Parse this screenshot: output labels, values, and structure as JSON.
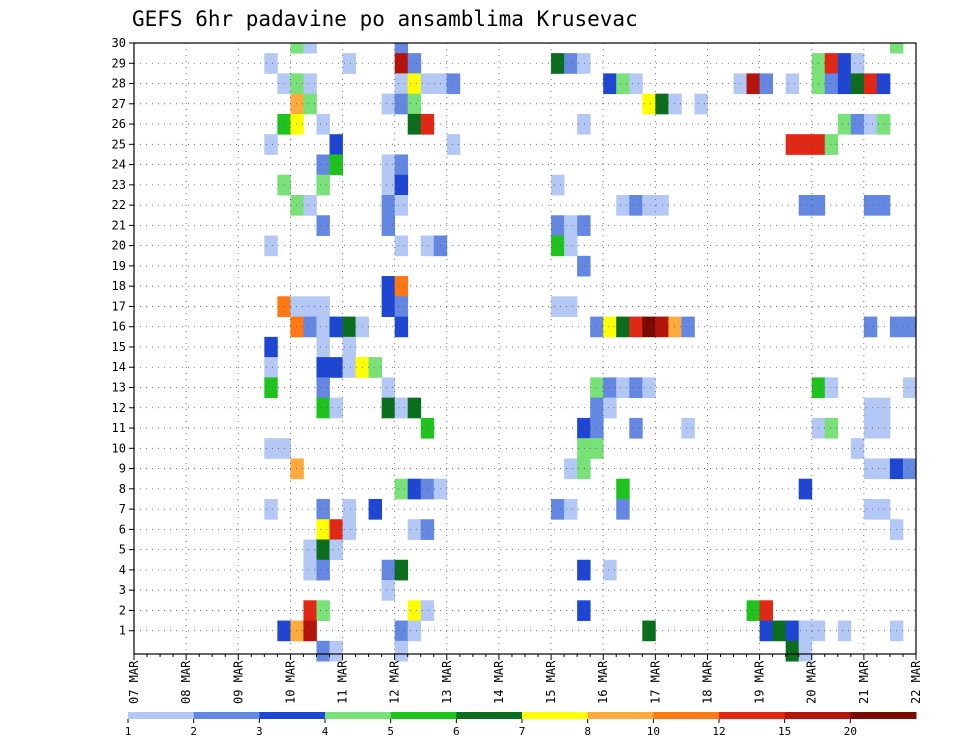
{
  "chart_data": {
    "type": "heatmap",
    "title": "GEFS 6hr padavine po ansamblima Krusevac",
    "xlabel": "",
    "ylabel": "",
    "y_ticks": [
      1,
      2,
      3,
      4,
      5,
      6,
      7,
      8,
      9,
      10,
      11,
      12,
      13,
      14,
      15,
      16,
      17,
      18,
      19,
      20,
      21,
      22,
      23,
      24,
      25,
      26,
      27,
      28,
      29,
      30
    ],
    "x_tick_labels": [
      "07 MAR",
      "08 MAR",
      "09 MAR",
      "10 MAR",
      "11 MAR",
      "12 MAR",
      "13 MAR",
      "14 MAR",
      "15 MAR",
      "16 MAR",
      "17 MAR",
      "18 MAR",
      "19 MAR",
      "20 MAR",
      "21 MAR",
      "22 MAR"
    ],
    "x_range_days": [
      0,
      15
    ],
    "y_range": [
      0,
      30
    ],
    "grid": true,
    "legend_position": "bottom",
    "legend_thresholds": [
      "1",
      "2",
      "3",
      "4",
      "5",
      "6",
      "7",
      "8",
      "10",
      "12",
      "15",
      "20"
    ],
    "legend_colors": [
      "#b4c8f5",
      "#6487e1",
      "#1e46d2",
      "#78e178",
      "#1ec31e",
      "#0a6e1e",
      "#ffff00",
      "#ffaa3c",
      "#ff7814",
      "#e12814",
      "#b4140a",
      "#780a00"
    ],
    "value_level_meaning": "level index 0-11 maps to legend color band (mm per 6h)",
    "cells": [
      [
        30,
        3.0,
        3
      ],
      [
        30,
        3.25,
        0
      ],
      [
        30,
        5.0,
        1
      ],
      [
        30,
        14.5,
        3
      ],
      [
        29,
        2.5,
        0
      ],
      [
        29,
        4.0,
        0
      ],
      [
        29,
        5.0,
        10
      ],
      [
        29,
        5.25,
        1
      ],
      [
        29,
        8.0,
        5
      ],
      [
        29,
        8.25,
        1
      ],
      [
        29,
        8.5,
        0
      ],
      [
        29,
        13.0,
        3
      ],
      [
        29,
        13.25,
        9
      ],
      [
        29,
        13.5,
        2
      ],
      [
        29,
        13.75,
        0
      ],
      [
        28,
        2.75,
        0
      ],
      [
        28,
        3.0,
        3
      ],
      [
        28,
        3.25,
        0
      ],
      [
        28,
        5.0,
        0
      ],
      [
        28,
        5.25,
        6
      ],
      [
        28,
        5.5,
        0
      ],
      [
        28,
        5.75,
        0
      ],
      [
        28,
        6.0,
        1
      ],
      [
        28,
        9.0,
        2
      ],
      [
        28,
        9.25,
        3
      ],
      [
        28,
        9.5,
        0
      ],
      [
        28,
        11.5,
        0
      ],
      [
        28,
        11.75,
        10
      ],
      [
        28,
        12.0,
        1
      ],
      [
        28,
        12.5,
        0
      ],
      [
        28,
        13.0,
        3
      ],
      [
        28,
        13.25,
        1
      ],
      [
        28,
        13.5,
        2
      ],
      [
        28,
        13.75,
        5
      ],
      [
        28,
        14.0,
        9
      ],
      [
        28,
        14.25,
        2
      ],
      [
        27,
        3.0,
        7
      ],
      [
        27,
        3.25,
        3
      ],
      [
        27,
        4.75,
        0
      ],
      [
        27,
        5.0,
        1
      ],
      [
        27,
        5.25,
        3
      ],
      [
        27,
        9.75,
        6
      ],
      [
        27,
        10.0,
        5
      ],
      [
        27,
        10.25,
        0
      ],
      [
        27,
        10.75,
        0
      ],
      [
        26,
        2.75,
        4
      ],
      [
        26,
        3.0,
        6
      ],
      [
        26,
        3.5,
        0
      ],
      [
        26,
        5.25,
        5
      ],
      [
        26,
        5.5,
        9
      ],
      [
        26,
        8.5,
        0
      ],
      [
        26,
        13.5,
        3
      ],
      [
        26,
        13.75,
        1
      ],
      [
        26,
        14.0,
        0
      ],
      [
        26,
        14.25,
        3
      ],
      [
        25,
        2.5,
        0
      ],
      [
        25,
        3.75,
        2
      ],
      [
        25,
        6.0,
        0
      ],
      [
        25,
        12.5,
        9
      ],
      [
        25,
        12.75,
        9
      ],
      [
        25,
        13.0,
        9
      ],
      [
        25,
        13.25,
        3
      ],
      [
        24,
        3.5,
        1
      ],
      [
        24,
        3.75,
        4
      ],
      [
        24,
        4.75,
        0
      ],
      [
        24,
        5.0,
        1
      ],
      [
        23,
        2.75,
        3
      ],
      [
        23,
        3.5,
        3
      ],
      [
        23,
        4.75,
        0
      ],
      [
        23,
        5.0,
        2
      ],
      [
        23,
        8.0,
        0
      ],
      [
        22,
        3.0,
        3
      ],
      [
        22,
        3.25,
        0
      ],
      [
        22,
        4.75,
        1
      ],
      [
        22,
        5.0,
        0
      ],
      [
        22,
        9.25,
        0
      ],
      [
        22,
        9.5,
        1
      ],
      [
        22,
        9.75,
        0
      ],
      [
        22,
        10.0,
        0
      ],
      [
        22,
        12.75,
        1
      ],
      [
        22,
        13.0,
        1
      ],
      [
        22,
        14.0,
        1
      ],
      [
        22,
        14.25,
        1
      ],
      [
        21,
        3.5,
        1
      ],
      [
        21,
        4.75,
        1
      ],
      [
        21,
        8.0,
        1
      ],
      [
        21,
        8.25,
        0
      ],
      [
        21,
        8.5,
        1
      ],
      [
        20,
        2.5,
        0
      ],
      [
        20,
        5.0,
        0
      ],
      [
        20,
        5.5,
        0
      ],
      [
        20,
        5.75,
        1
      ],
      [
        20,
        8.0,
        4
      ],
      [
        20,
        8.25,
        0
      ],
      [
        19,
        8.5,
        1
      ],
      [
        18,
        4.75,
        2
      ],
      [
        18,
        5.0,
        8
      ],
      [
        17,
        2.75,
        8
      ],
      [
        17,
        3.0,
        0
      ],
      [
        17,
        3.25,
        0
      ],
      [
        17,
        3.5,
        0
      ],
      [
        17,
        4.75,
        2
      ],
      [
        17,
        5.0,
        1
      ],
      [
        17,
        8.0,
        0
      ],
      [
        17,
        8.25,
        0
      ],
      [
        16,
        3.0,
        8
      ],
      [
        16,
        3.25,
        1
      ],
      [
        16,
        3.5,
        0
      ],
      [
        16,
        3.75,
        2
      ],
      [
        16,
        4.0,
        5
      ],
      [
        16,
        4.25,
        0
      ],
      [
        16,
        5.0,
        2
      ],
      [
        16,
        8.75,
        1
      ],
      [
        16,
        9.0,
        6
      ],
      [
        16,
        9.25,
        5
      ],
      [
        16,
        9.5,
        9
      ],
      [
        16,
        9.75,
        11
      ],
      [
        16,
        10.0,
        10
      ],
      [
        16,
        10.25,
        7
      ],
      [
        16,
        10.5,
        1
      ],
      [
        16,
        14.0,
        1
      ],
      [
        16,
        14.5,
        1
      ],
      [
        16,
        14.75,
        1
      ],
      [
        15,
        2.5,
        2
      ],
      [
        15,
        3.5,
        0
      ],
      [
        15,
        4.0,
        0
      ],
      [
        14,
        2.5,
        0
      ],
      [
        14,
        3.5,
        2
      ],
      [
        14,
        3.75,
        2
      ],
      [
        14,
        4.0,
        0
      ],
      [
        14,
        4.25,
        6
      ],
      [
        14,
        4.5,
        3
      ],
      [
        13,
        2.5,
        4
      ],
      [
        13,
        3.5,
        1
      ],
      [
        13,
        4.75,
        0
      ],
      [
        13,
        8.75,
        3
      ],
      [
        13,
        9.0,
        1
      ],
      [
        13,
        9.25,
        0
      ],
      [
        13,
        9.5,
        1
      ],
      [
        13,
        9.75,
        0
      ],
      [
        13,
        13.0,
        4
      ],
      [
        13,
        13.25,
        0
      ],
      [
        13,
        14.75,
        0
      ],
      [
        12,
        3.5,
        4
      ],
      [
        12,
        3.75,
        0
      ],
      [
        12,
        4.75,
        5
      ],
      [
        12,
        5.0,
        0
      ],
      [
        12,
        5.25,
        5
      ],
      [
        12,
        8.75,
        1
      ],
      [
        12,
        9.0,
        0
      ],
      [
        12,
        14.0,
        0
      ],
      [
        12,
        14.25,
        0
      ],
      [
        11,
        5.5,
        4
      ],
      [
        11,
        8.5,
        2
      ],
      [
        11,
        8.75,
        1
      ],
      [
        11,
        9.5,
        1
      ],
      [
        11,
        10.5,
        0
      ],
      [
        11,
        13.0,
        0
      ],
      [
        11,
        13.25,
        3
      ],
      [
        11,
        14.0,
        0
      ],
      [
        11,
        14.25,
        0
      ],
      [
        10,
        2.5,
        0
      ],
      [
        10,
        2.75,
        0
      ],
      [
        10,
        8.5,
        3
      ],
      [
        10,
        8.75,
        3
      ],
      [
        10,
        13.75,
        0
      ],
      [
        9,
        3.0,
        7
      ],
      [
        9,
        8.25,
        0
      ],
      [
        9,
        8.5,
        3
      ],
      [
        9,
        14.0,
        0
      ],
      [
        9,
        14.25,
        0
      ],
      [
        9,
        14.5,
        2
      ],
      [
        9,
        14.75,
        1
      ],
      [
        8,
        5.0,
        3
      ],
      [
        8,
        5.25,
        2
      ],
      [
        8,
        5.5,
        1
      ],
      [
        8,
        5.75,
        0
      ],
      [
        8,
        9.25,
        4
      ],
      [
        8,
        12.75,
        2
      ],
      [
        7,
        2.5,
        0
      ],
      [
        7,
        3.5,
        1
      ],
      [
        7,
        4.0,
        0
      ],
      [
        7,
        4.5,
        2
      ],
      [
        7,
        8.0,
        1
      ],
      [
        7,
        8.25,
        0
      ],
      [
        7,
        9.25,
        1
      ],
      [
        7,
        14.0,
        0
      ],
      [
        7,
        14.25,
        0
      ],
      [
        6,
        3.5,
        6
      ],
      [
        6,
        3.75,
        9
      ],
      [
        6,
        4.0,
        0
      ],
      [
        6,
        5.25,
        0
      ],
      [
        6,
        5.5,
        1
      ],
      [
        6,
        14.5,
        0
      ],
      [
        5,
        3.25,
        0
      ],
      [
        5,
        3.5,
        5
      ],
      [
        5,
        3.75,
        0
      ],
      [
        4,
        3.25,
        0
      ],
      [
        4,
        3.5,
        1
      ],
      [
        4,
        4.75,
        1
      ],
      [
        4,
        5.0,
        5
      ],
      [
        4,
        8.5,
        2
      ],
      [
        4,
        9.0,
        0
      ],
      [
        3,
        4.75,
        0
      ],
      [
        2,
        3.25,
        9
      ],
      [
        2,
        3.5,
        3
      ],
      [
        2,
        5.25,
        6
      ],
      [
        2,
        5.5,
        0
      ],
      [
        2,
        8.5,
        2
      ],
      [
        2,
        11.75,
        4
      ],
      [
        2,
        12.0,
        9
      ],
      [
        1,
        2.75,
        2
      ],
      [
        1,
        3.0,
        7
      ],
      [
        1,
        3.25,
        10
      ],
      [
        1,
        5.0,
        1
      ],
      [
        1,
        5.25,
        0
      ],
      [
        1,
        9.75,
        5
      ],
      [
        1,
        12.0,
        2
      ],
      [
        1,
        12.25,
        5
      ],
      [
        1,
        12.5,
        2
      ],
      [
        1,
        12.75,
        0
      ],
      [
        1,
        13.0,
        0
      ],
      [
        1,
        13.5,
        0
      ],
      [
        1,
        14.5,
        0
      ],
      [
        0,
        3.5,
        1
      ],
      [
        0,
        3.75,
        0
      ],
      [
        0,
        5.0,
        0
      ],
      [
        0,
        12.5,
        5
      ],
      [
        0,
        12.75,
        0
      ]
    ]
  }
}
